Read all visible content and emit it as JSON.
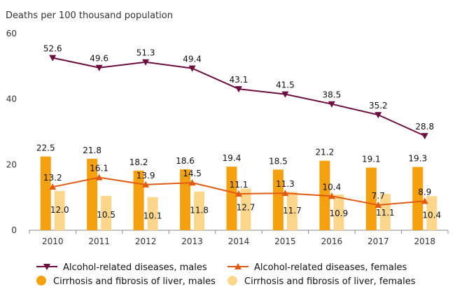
{
  "chart_data": {
    "type": "bar",
    "ylabel": "Deaths per 100 thousand population",
    "ylim": [
      0,
      60
    ],
    "yticks": [
      0,
      20,
      40,
      60
    ],
    "categories": [
      "2010",
      "2011",
      "2012",
      "2013",
      "2014",
      "2015",
      "2016",
      "2017",
      "2018"
    ],
    "grid": false,
    "legend_position": "bottom",
    "series": [
      {
        "name": "Alcohol-related diseases, males",
        "kind": "line",
        "marker": "triangle-down",
        "color": "#6b0d3f",
        "values": [
          52.6,
          49.6,
          51.3,
          49.4,
          43.1,
          41.5,
          38.5,
          35.2,
          28.8
        ],
        "labels": [
          "52.6",
          "49.6",
          "51.3",
          "49.4",
          "43.1",
          "41.5",
          "38.5",
          "35.2",
          "28.8"
        ]
      },
      {
        "name": "Alcohol-related diseases, females",
        "kind": "line",
        "marker": "triangle-up",
        "color": "#e05a12",
        "values": [
          13.2,
          16.1,
          13.9,
          14.5,
          11.1,
          11.3,
          10.4,
          7.7,
          8.9
        ],
        "labels": [
          "13.2",
          "16.1",
          "13.9",
          "14.5",
          "11.1",
          "11.3",
          "10.4",
          "7.7",
          "8.9"
        ]
      },
      {
        "name": "Cirrhosis and fibrosis of liver, males",
        "kind": "bar",
        "color": "#f5a10f",
        "values": [
          22.5,
          21.8,
          18.2,
          18.6,
          19.4,
          18.5,
          21.2,
          19.1,
          19.3
        ],
        "labels": [
          "22.5",
          "21.8",
          "18.2",
          "18.6",
          "19.4",
          "18.5",
          "21.2",
          "19.1",
          "19.3"
        ]
      },
      {
        "name": "Cirrhosis and fibrosis of liver, females",
        "kind": "bar",
        "color": "#fcd68a",
        "values": [
          12.0,
          10.5,
          10.1,
          11.8,
          12.7,
          11.7,
          10.9,
          11.1,
          10.4
        ],
        "labels": [
          "12.0",
          "10.5",
          "10.1",
          "11.8",
          "12.7",
          "11.7",
          "10.9",
          "11.1",
          "10.4"
        ]
      }
    ]
  }
}
